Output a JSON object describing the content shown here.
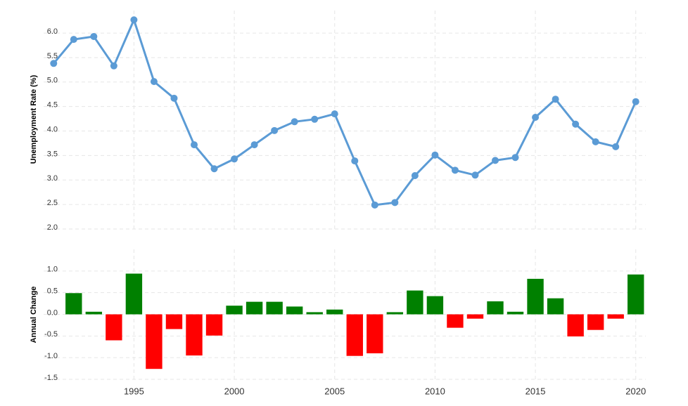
{
  "chart_data": [
    {
      "type": "line",
      "y_label": "Unemployment Rate (%)",
      "color": "#5b9bd5",
      "x": [
        1991,
        1992,
        1993,
        1994,
        1995,
        1996,
        1997,
        1998,
        1999,
        2000,
        2001,
        2002,
        2003,
        2004,
        2005,
        2006,
        2007,
        2008,
        2009,
        2010,
        2011,
        2012,
        2013,
        2014,
        2015,
        2016,
        2017,
        2018,
        2019,
        2020
      ],
      "values": [
        5.38,
        5.87,
        5.93,
        5.33,
        6.27,
        5.01,
        4.67,
        3.72,
        3.23,
        3.43,
        3.72,
        4.01,
        4.19,
        4.24,
        4.35,
        3.39,
        2.49,
        2.54,
        3.09,
        3.51,
        3.2,
        3.1,
        3.4,
        3.46,
        4.28,
        4.65,
        4.14,
        3.78,
        3.68,
        4.6
      ],
      "xlim": [
        1990.5,
        2020.5
      ],
      "ylim": [
        2.0,
        6.46
      ],
      "yticks": [
        {
          "value": 2,
          "label": "2.0"
        },
        2.5,
        {
          "value": 3,
          "label": "3.0"
        },
        3.5,
        {
          "value": 4,
          "label": "4.0"
        },
        4.5,
        {
          "value": 5,
          "label": "5.0"
        },
        5.5,
        {
          "value": 6,
          "label": "6.0"
        }
      ],
      "grid": true
    },
    {
      "type": "bar",
      "y_label": "Annual Change",
      "positive_color": "#008000",
      "negative_color": "#ff0000",
      "x": [
        1992,
        1993,
        1994,
        1995,
        1996,
        1997,
        1998,
        1999,
        2000,
        2001,
        2002,
        2003,
        2004,
        2005,
        2006,
        2007,
        2008,
        2009,
        2010,
        2011,
        2012,
        2013,
        2014,
        2015,
        2016,
        2017,
        2018,
        2019,
        2020
      ],
      "values": [
        0.49,
        0.06,
        -0.6,
        0.94,
        -1.26,
        -0.34,
        -0.95,
        -0.49,
        0.2,
        0.29,
        0.29,
        0.18,
        0.05,
        0.11,
        -0.96,
        -0.9,
        0.05,
        0.55,
        0.42,
        -0.31,
        -0.1,
        0.3,
        0.06,
        0.82,
        0.37,
        -0.51,
        -0.36,
        -0.1,
        0.92
      ],
      "xlim": [
        1990.5,
        2020.5
      ],
      "ylim": [
        -1.5,
        1.5
      ],
      "xticks": [
        1995,
        2000,
        2005,
        2010,
        2015,
        2020
      ],
      "yticks": [
        -1.5,
        {
          "value": -1,
          "label": "-1.0"
        },
        -0.5,
        {
          "value": 0,
          "label": "0.0"
        },
        0.5,
        {
          "value": 1,
          "label": "1.0"
        }
      ],
      "grid": true
    }
  ]
}
